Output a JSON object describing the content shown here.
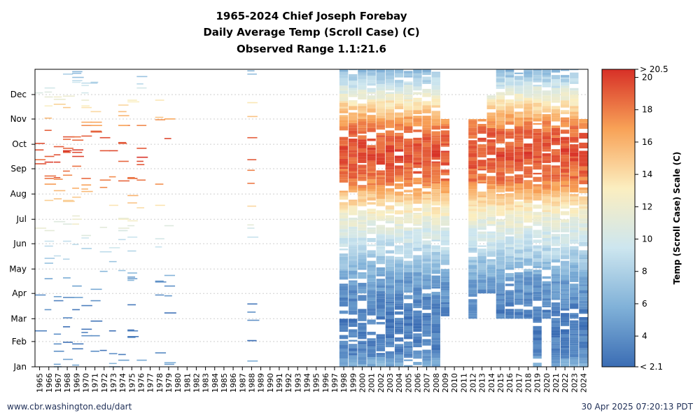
{
  "title_lines": [
    "1965-2024 Chief Joseph Forebay",
    "Daily Average Temp (Scroll Case) (C)",
    "Observed Range 1.1:21.6"
  ],
  "footer": {
    "source": "www.cbr.washington.edu/dart",
    "timestamp": "30 Apr 2025 07:20:13 PDT"
  },
  "chart_data": {
    "type": "heatmap",
    "title": "1965-2024 Chief Joseph Forebay Daily Average Temp (Scroll Case) (C)",
    "subtitle": "Observed Range 1.1:21.6",
    "x": [
      "1965",
      "1966",
      "1967",
      "1968",
      "1969",
      "1970",
      "1971",
      "1972",
      "1973",
      "1974",
      "1975",
      "1976",
      "1977",
      "1978",
      "1979",
      "1980",
      "1981",
      "1982",
      "1983",
      "1984",
      "1985",
      "1986",
      "1987",
      "1988",
      "1989",
      "1990",
      "1991",
      "1992",
      "1993",
      "1994",
      "1995",
      "1996",
      "1997",
      "1998",
      "1999",
      "2000",
      "2001",
      "2002",
      "2003",
      "2004",
      "2005",
      "2006",
      "2007",
      "2008",
      "2009",
      "2010",
      "2011",
      "2012",
      "2013",
      "2014",
      "2015",
      "2016",
      "2017",
      "2018",
      "2019",
      "2020",
      "2021",
      "2022",
      "2023",
      "2024"
    ],
    "y": [
      "Jan",
      "Feb",
      "Mar",
      "Apr",
      "May",
      "Jun",
      "Jul",
      "Aug",
      "Sep",
      "Oct",
      "Nov",
      "Dec"
    ],
    "xlabel": "",
    "ylabel": "",
    "colorbar": {
      "label": "Temp (Scroll Case) Scale (C)",
      "min": 2.1,
      "max": 20.5,
      "ticks": [
        4,
        6,
        8,
        10,
        12,
        14,
        16,
        18,
        20
      ],
      "low_label": "< 2.1",
      "high_label": "> 20.5",
      "colors": [
        "#3b6db4",
        "#80b1d8",
        "#cde6ef",
        "#fbeec0",
        "#f8a257",
        "#d73027"
      ]
    },
    "grid": "horizontal dotted at month boundaries",
    "coverage": {
      "sparse_years": [
        "1965",
        "1966",
        "1967",
        "1968",
        "1969",
        "1970",
        "1971",
        "1972",
        "1973",
        "1974",
        "1975",
        "1976",
        "1978",
        "1979",
        "1988"
      ],
      "full_years": [
        "1998",
        "1999",
        "2000",
        "2001",
        "2002",
        "2003",
        "2004",
        "2005",
        "2006",
        "2007",
        "2008"
      ],
      "partial_years": [
        {
          "year": "2009",
          "from": "Mar",
          "to": "Oct"
        },
        {
          "year": "2012",
          "from": "Mar",
          "to": "Oct"
        },
        {
          "year": "2013",
          "from": "Apr",
          "to": "Oct"
        },
        {
          "year": "2014",
          "from": "Apr",
          "to": "Nov"
        },
        {
          "year": "2015",
          "from": "Mar",
          "to": "Dec"
        },
        {
          "year": "2016",
          "from": "Mar",
          "to": "Dec"
        },
        {
          "year": "2017",
          "from": "Mar",
          "to": "Dec"
        },
        {
          "year": "2018",
          "from": "Mar",
          "to": "Dec"
        },
        {
          "year": "2019",
          "from": "Jan",
          "to": "Dec"
        },
        {
          "year": "2020",
          "from": "Mar",
          "to": "Dec"
        },
        {
          "year": "2021",
          "from": "Jan",
          "to": "Dec"
        },
        {
          "year": "2022",
          "from": "Jan",
          "to": "Dec"
        },
        {
          "year": "2023",
          "from": "Jan",
          "to": "Dec"
        },
        {
          "year": "2024",
          "from": "Jan",
          "to": "Oct"
        }
      ]
    },
    "monthly_typical_temp_c": {
      "Jan": 3.5,
      "Feb": 3.0,
      "Mar": 3.5,
      "Apr": 5.0,
      "May": 8.0,
      "Jun": 10.5,
      "Jul": 13.5,
      "Aug": 18.0,
      "Sep": 19.5,
      "Oct": 18.5,
      "Nov": 14.0,
      "Dec": 8.5
    }
  }
}
